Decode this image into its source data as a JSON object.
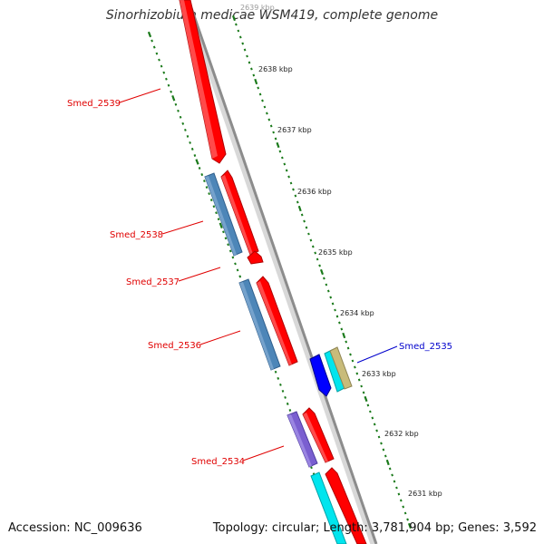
{
  "title": "Sinorhizobium medicae WSM419, complete genome",
  "footer": {
    "accession": "Accession: NC_009636",
    "stats": "Topology: circular; Length: 3,781,904 bp; Genes: 3,592"
  },
  "ticks": [
    "2639 kbp",
    "2638 kbp",
    "2637 kbp",
    "2636 kbp",
    "2635 kbp",
    "2634 kbp",
    "2633 kbp",
    "2632 kbp",
    "2631 kbp"
  ],
  "genes": [
    {
      "id": "smed2539",
      "label": "Smed_2539",
      "color": "#ff0000"
    },
    {
      "id": "smed2538",
      "label": "Smed_2538",
      "color": "#4d86b8"
    },
    {
      "id": "smed2537",
      "label": "Smed_2537",
      "color": "#ff0000"
    },
    {
      "id": "smed2536",
      "label": "Smed_2536",
      "color": "#4d86b8"
    },
    {
      "id": "smed2535",
      "label": "Smed_2535",
      "color": "#0000ff"
    },
    {
      "id": "smed2534",
      "label": "Smed_2534",
      "color": "#7a5fd0"
    }
  ],
  "colors": {
    "backbone": "#8c8c8c",
    "tick": "#1b7a1b",
    "cds_red": "#ff0000",
    "trna_blue": "#4d86b8",
    "cyan": "#00e5ee",
    "khaki": "#c8bb7a",
    "purple": "#7a5fd0",
    "blue": "#0000ff"
  }
}
